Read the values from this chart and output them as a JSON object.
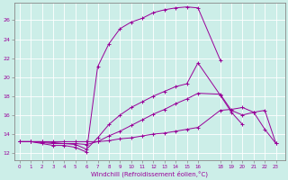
{
  "xlabel": "Windchill (Refroidissement éolien,°C)",
  "bg_color": "#cceee8",
  "grid_color": "#aadddd",
  "line_color": "#990099",
  "spine_color": "#888888",
  "x_ticks": [
    0,
    1,
    2,
    3,
    4,
    5,
    6,
    7,
    8,
    9,
    10,
    11,
    12,
    13,
    14,
    15,
    16,
    18,
    19,
    20,
    21,
    22,
    23
  ],
  "y_ticks": [
    12,
    14,
    16,
    18,
    20,
    22,
    24,
    26
  ],
  "xlim": [
    -0.5,
    23.8
  ],
  "ylim": [
    11.2,
    27.8
  ],
  "series": [
    {
      "x": [
        0,
        1,
        2,
        3,
        4,
        5,
        6,
        7,
        8,
        9,
        10,
        11,
        12,
        13,
        14,
        15,
        16,
        18,
        19,
        20,
        21,
        22,
        23
      ],
      "y": [
        13.2,
        13.2,
        13.0,
        12.8,
        12.8,
        12.6,
        12.1,
        21.1,
        23.5,
        25.1,
        25.8,
        26.2,
        26.8,
        27.1,
        27.3,
        27.4,
        27.3,
        21.8,
        null,
        null,
        null,
        null,
        null
      ]
    },
    {
      "x": [
        0,
        1,
        2,
        3,
        4,
        5,
        6,
        7,
        8,
        9,
        10,
        11,
        12,
        13,
        14,
        15,
        16,
        18,
        19,
        20,
        21,
        22,
        23
      ],
      "y": [
        13.2,
        13.2,
        13.1,
        13.0,
        13.0,
        12.9,
        12.4,
        13.6,
        15.0,
        16.0,
        16.8,
        17.4,
        18.0,
        18.5,
        19.0,
        19.3,
        21.5,
        18.1,
        16.3,
        15.0,
        null,
        null,
        null
      ]
    },
    {
      "x": [
        0,
        1,
        2,
        3,
        4,
        5,
        6,
        7,
        8,
        9,
        10,
        11,
        12,
        13,
        14,
        15,
        16,
        18,
        19,
        20,
        21,
        22,
        23
      ],
      "y": [
        13.2,
        13.2,
        13.2,
        13.1,
        13.0,
        13.0,
        12.9,
        13.2,
        13.8,
        14.3,
        14.9,
        15.5,
        16.1,
        16.6,
        17.2,
        17.7,
        18.3,
        18.2,
        16.5,
        16.0,
        16.3,
        14.5,
        13.0
      ]
    },
    {
      "x": [
        0,
        1,
        2,
        3,
        4,
        5,
        6,
        7,
        8,
        9,
        10,
        11,
        12,
        13,
        14,
        15,
        16,
        18,
        19,
        20,
        21,
        22,
        23
      ],
      "y": [
        13.2,
        13.2,
        13.2,
        13.2,
        13.2,
        13.2,
        13.2,
        13.2,
        13.3,
        13.5,
        13.6,
        13.8,
        14.0,
        14.1,
        14.3,
        14.5,
        14.7,
        16.5,
        16.6,
        16.8,
        16.3,
        16.5,
        13.0
      ]
    }
  ]
}
